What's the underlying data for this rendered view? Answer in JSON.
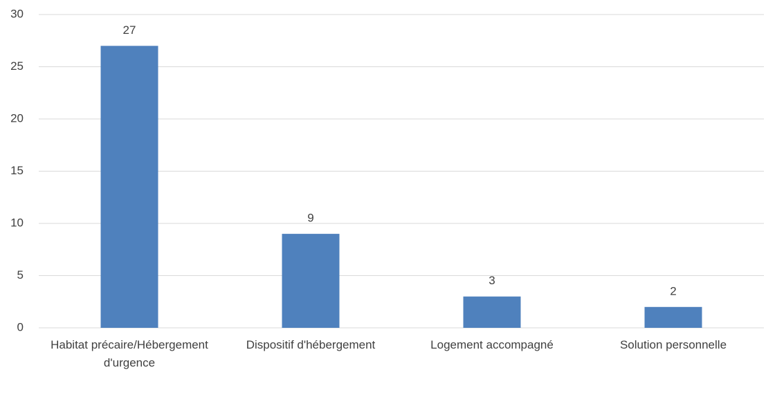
{
  "chart_data": {
    "type": "bar",
    "categories": [
      "Habitat précaire/Hébergement d'urgence",
      "Dispositif d'hébergement",
      "Logement accompagné",
      "Solution personnelle"
    ],
    "values": [
      27,
      9,
      3,
      2
    ],
    "color": "#4f81bd",
    "ylim": [
      0,
      30
    ],
    "yticks": [
      0,
      5,
      10,
      15,
      20,
      25,
      30
    ],
    "grid": true,
    "data_labels": true
  }
}
